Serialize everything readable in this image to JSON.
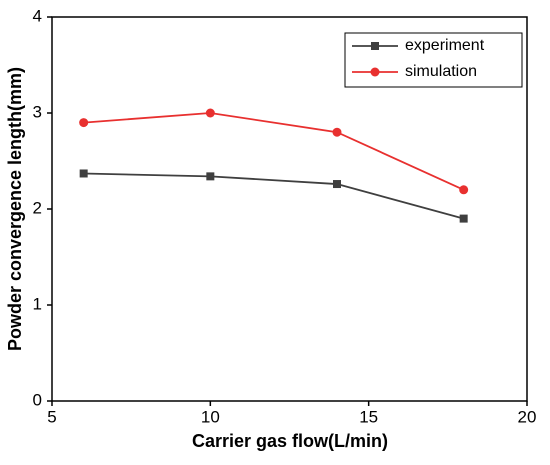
{
  "chart_data": {
    "type": "line",
    "x": [
      6,
      10,
      14,
      18
    ],
    "series": [
      {
        "name": "experiment",
        "color": "#3f3f3f",
        "marker": "square",
        "values": [
          2.37,
          2.34,
          2.26,
          1.9
        ]
      },
      {
        "name": "simulation",
        "color": "#e8302f",
        "marker": "circle",
        "values": [
          2.9,
          3.0,
          2.8,
          2.2
        ]
      }
    ],
    "x_label": "Carrier gas flow(L/min)",
    "y_label": "Powder convergence length(mm)",
    "xlim": [
      5,
      20
    ],
    "xticks": [
      5,
      10,
      15,
      20
    ],
    "ylim": [
      0,
      4
    ],
    "yticks": [
      0,
      1,
      2,
      3,
      4
    ],
    "legend": "upper right"
  }
}
